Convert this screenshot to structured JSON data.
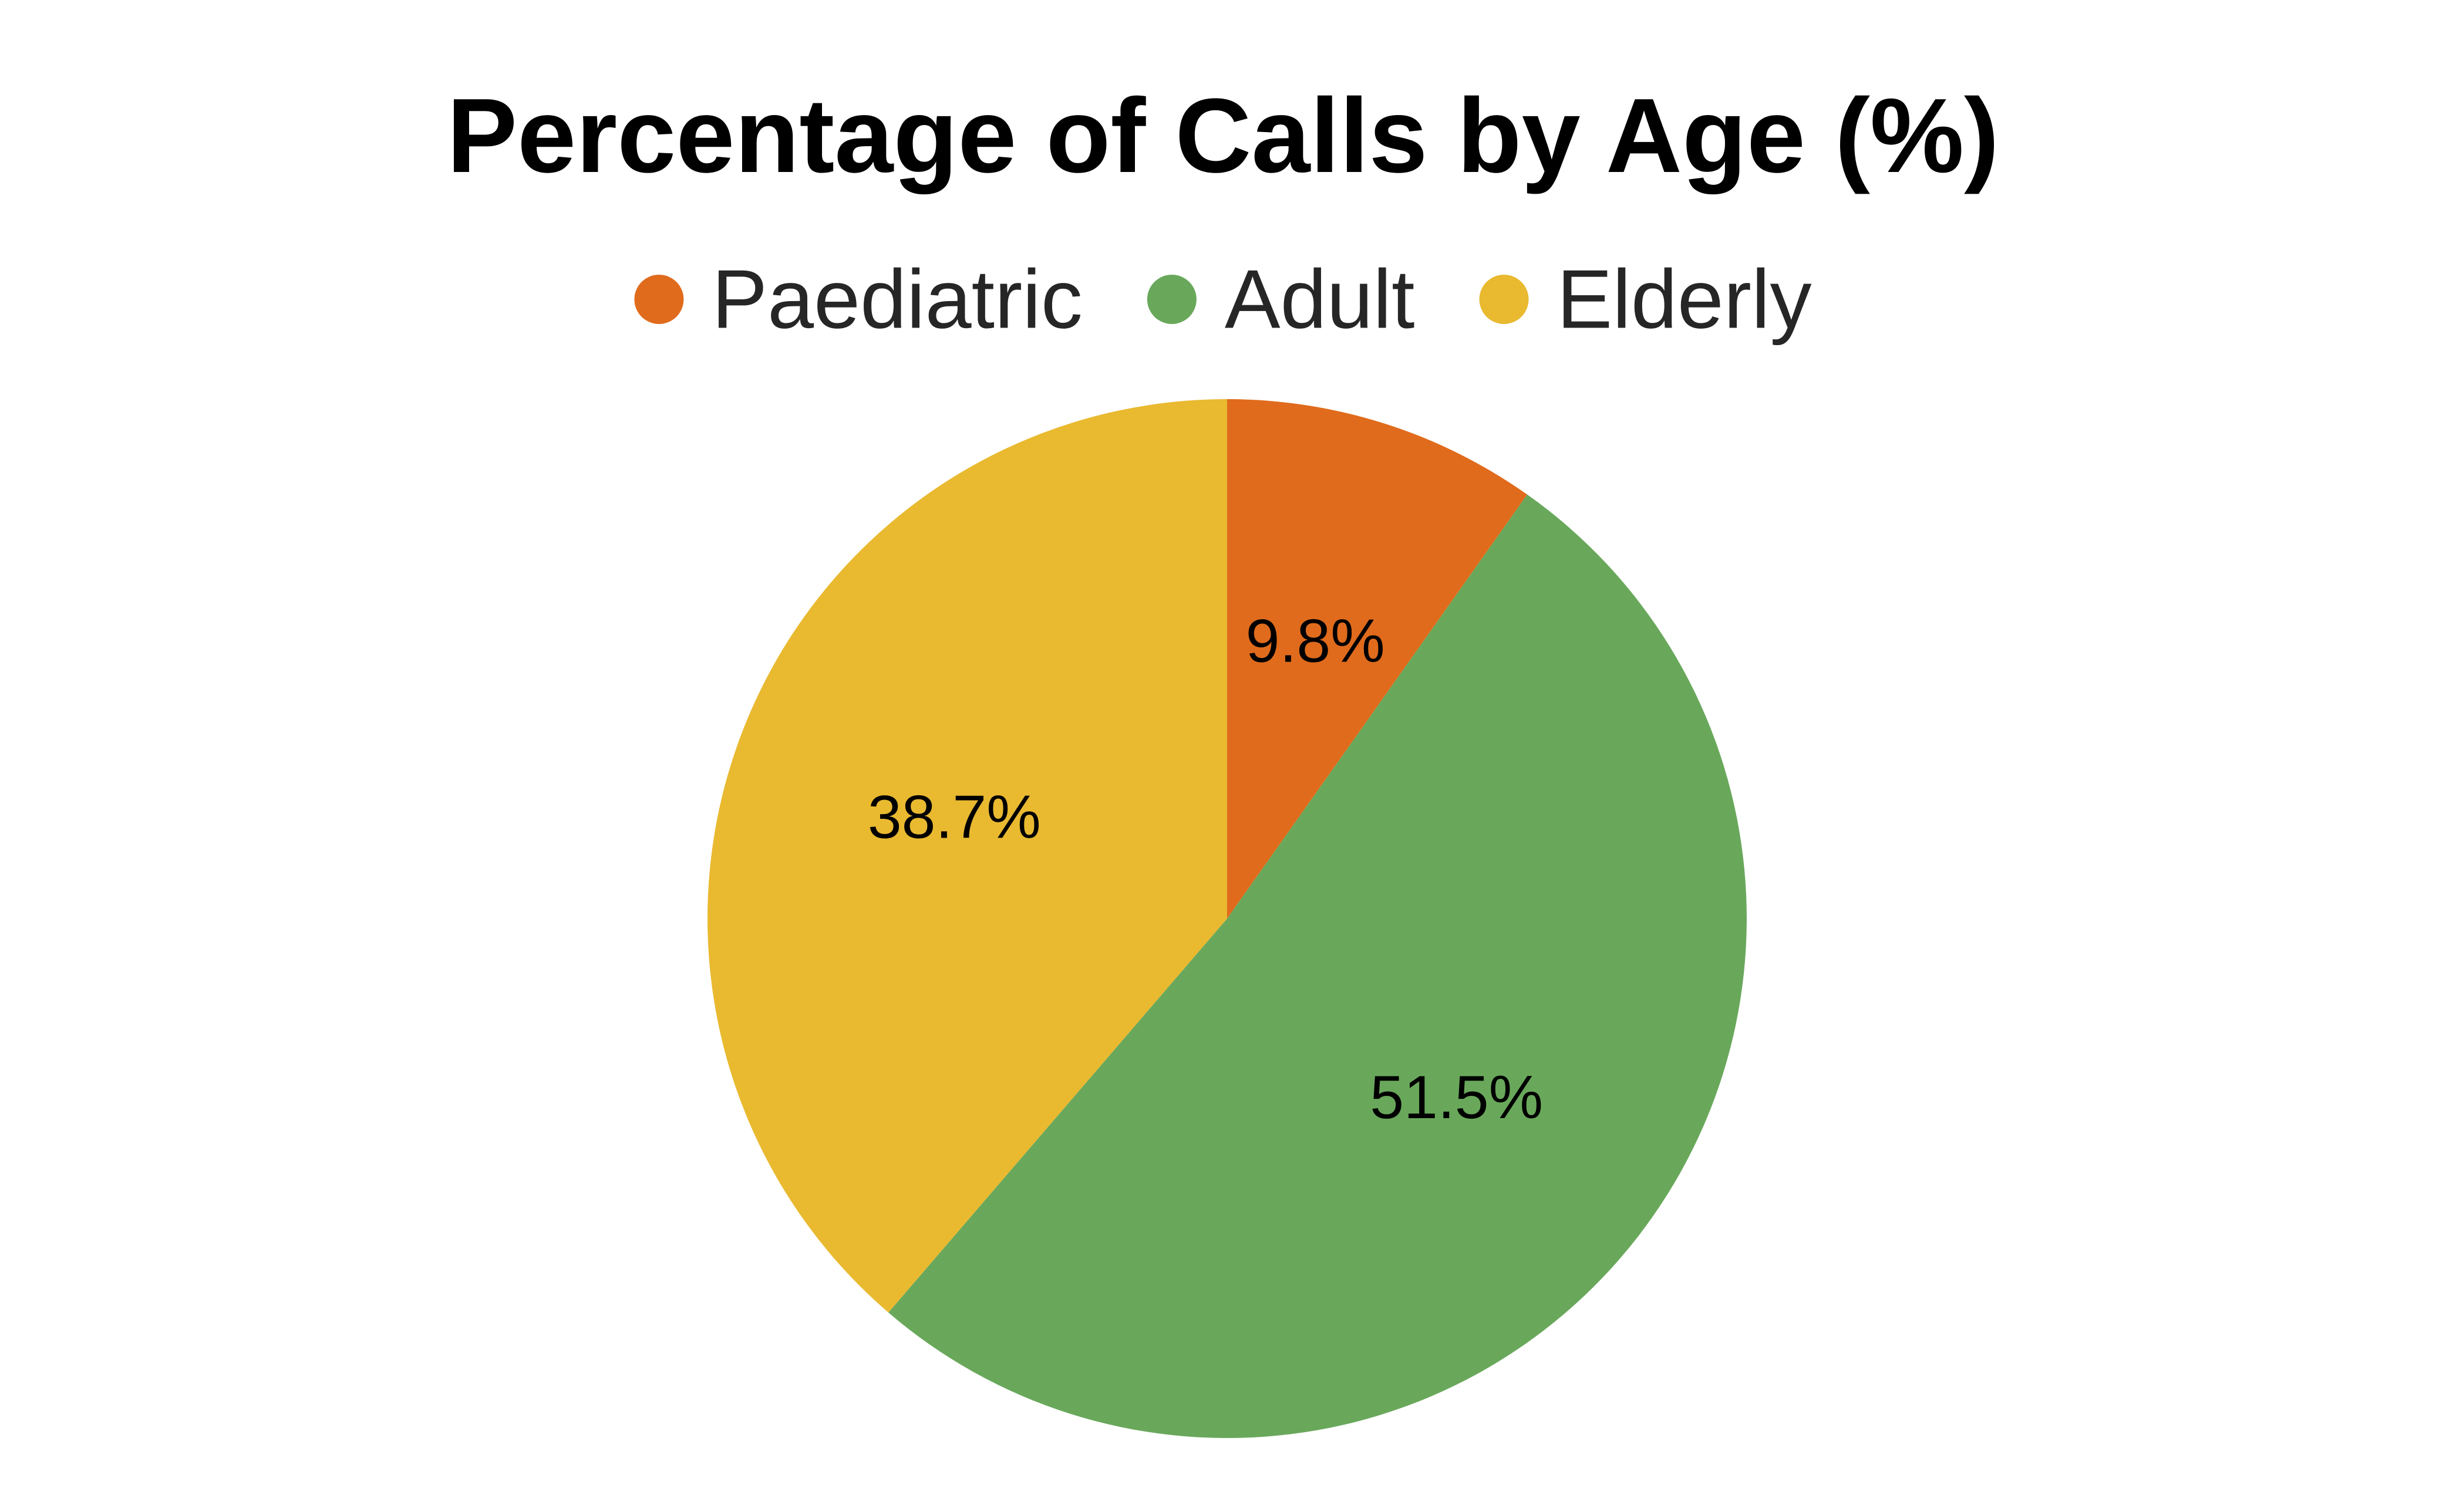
{
  "chart_data": {
    "type": "pie",
    "title": "Percentage of Calls by Age (%)",
    "categories": [
      "Paediatric",
      "Adult",
      "Elderly"
    ],
    "values": [
      9.8,
      51.5,
      38.7
    ],
    "labels": [
      "9.8%",
      "51.5%",
      "38.7%"
    ],
    "colors": [
      "#E06B1C",
      "#69A85B",
      "#E9B930"
    ],
    "start_angle_deg": 0,
    "direction": "clockwise",
    "legend_position": "top"
  }
}
